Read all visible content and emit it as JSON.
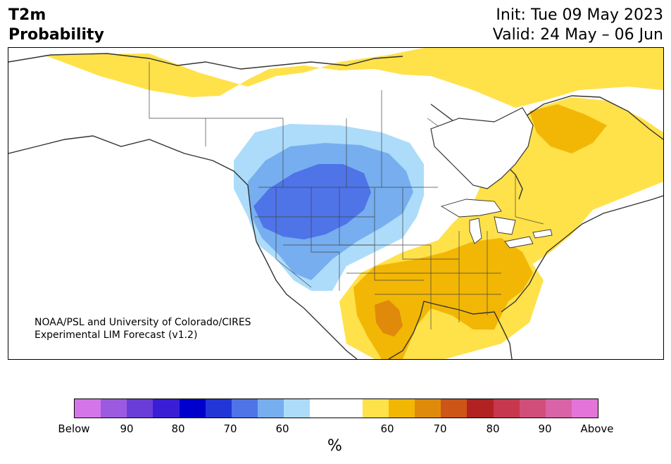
{
  "header": {
    "title_line1": "T2m",
    "title_line2": "Probability",
    "init": "Init: Tue 09 May 2023",
    "valid": "Valid: 24 May – 06 Jun"
  },
  "credit": {
    "line1": "NOAA/PSL and University of Colorado/CIRES",
    "line2": "Experimental LIM Forecast (v1.2)"
  },
  "colorbar": {
    "colors": [
      "#d476ea",
      "#9b5ae0",
      "#6b3dd8",
      "#3a1ed6",
      "#0000cc",
      "#2236d8",
      "#4e74e8",
      "#76aef0",
      "#acdcfa",
      "#ffffff",
      "#ffffff",
      "#ffe14a",
      "#f2b705",
      "#e08a0b",
      "#cc5517",
      "#b22222",
      "#c7384e",
      "#d24e7a",
      "#da62a6",
      "#e574d8"
    ],
    "ticks": [
      {
        "label": "Below"
      },
      {
        "label": "90"
      },
      {
        "label": "80"
      },
      {
        "label": "70"
      },
      {
        "label": "60"
      },
      {
        "label": "60"
      },
      {
        "label": "70"
      },
      {
        "label": "80"
      },
      {
        "label": "90"
      },
      {
        "label": "Above"
      }
    ],
    "unit": "%"
  },
  "palette": {
    "blue_light": "#acdcfa",
    "blue_mid": "#76aef0",
    "blue_dark": "#4e74e8",
    "yellow": "#ffe14a",
    "orange": "#f2b705",
    "dark_orange": "#e08a0b",
    "land_outline": "#333333"
  }
}
